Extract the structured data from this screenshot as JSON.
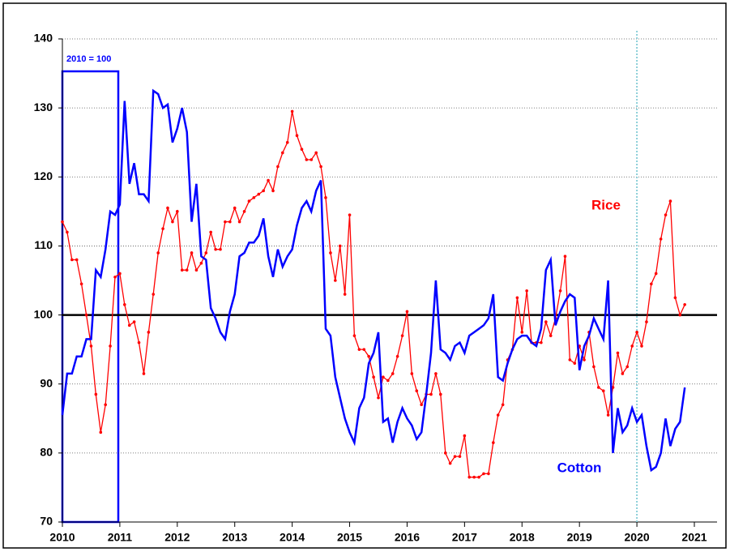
{
  "chart_data": {
    "type": "line",
    "annotations": [
      "2010 = 100"
    ],
    "x": [
      2010,
      2010.083,
      2010.167,
      2010.25,
      2010.333,
      2010.417,
      2010.5,
      2010.583,
      2010.667,
      2010.75,
      2010.833,
      2010.917,
      2011,
      2011.083,
      2011.167,
      2011.25,
      2011.333,
      2011.417,
      2011.5,
      2011.583,
      2011.667,
      2011.75,
      2011.833,
      2011.917,
      2012,
      2012.083,
      2012.167,
      2012.25,
      2012.333,
      2012.417,
      2012.5,
      2012.583,
      2012.667,
      2012.75,
      2012.833,
      2012.917,
      2013,
      2013.083,
      2013.167,
      2013.25,
      2013.333,
      2013.417,
      2013.5,
      2013.583,
      2013.667,
      2013.75,
      2013.833,
      2013.917,
      2014,
      2014.083,
      2014.167,
      2014.25,
      2014.333,
      2014.417,
      2014.5,
      2014.583,
      2014.667,
      2014.75,
      2014.833,
      2014.917,
      2015,
      2015.083,
      2015.167,
      2015.25,
      2015.333,
      2015.417,
      2015.5,
      2015.583,
      2015.667,
      2015.75,
      2015.833,
      2015.917,
      2016,
      2016.083,
      2016.167,
      2016.25,
      2016.333,
      2016.417,
      2016.5,
      2016.583,
      2016.667,
      2016.75,
      2016.833,
      2016.917,
      2017,
      2017.083,
      2017.167,
      2017.25,
      2017.333,
      2017.417,
      2017.5,
      2017.583,
      2017.667,
      2017.75,
      2017.833,
      2017.917,
      2018,
      2018.083,
      2018.167,
      2018.25,
      2018.333,
      2018.417,
      2018.5,
      2018.583,
      2018.667,
      2018.75,
      2018.833,
      2018.917,
      2019,
      2019.083,
      2019.167,
      2019.25,
      2019.333,
      2019.417,
      2019.5,
      2019.583,
      2019.667,
      2019.75,
      2019.833,
      2019.917,
      2020,
      2020.083,
      2020.167,
      2020.25,
      2020.333,
      2020.417,
      2020.5,
      2020.583,
      2020.667,
      2020.75,
      2020.833
    ],
    "series": [
      {
        "name": "Rice",
        "color": "#ff0000",
        "markers": true,
        "values": [
          113.5,
          112,
          108,
          108,
          104.5,
          100,
          95.5,
          88.5,
          83,
          87,
          95.5,
          105.5,
          106,
          101.5,
          98.5,
          99,
          96,
          91.5,
          97.5,
          103,
          109,
          112.5,
          115.5,
          113.5,
          115,
          106.5,
          106.5,
          109,
          106.5,
          107.5,
          109,
          112,
          109.5,
          109.5,
          113.5,
          113.5,
          115.5,
          113.5,
          115,
          116.5,
          117,
          117.5,
          118,
          119.5,
          118,
          121.5,
          123.5,
          125,
          129.5,
          126,
          124,
          122.5,
          122.5,
          123.5,
          121.5,
          117,
          109,
          105,
          110,
          103,
          114.5,
          97,
          95,
          95,
          94,
          91,
          88,
          91,
          90.5,
          91.5,
          94,
          97,
          100.5,
          91.5,
          89,
          87,
          88.5,
          88.5,
          91.5,
          88.5,
          80,
          78.5,
          79.5,
          79.5,
          82.5,
          76.5,
          76.5,
          76.5,
          77,
          77,
          81.5,
          85.5,
          87,
          93.5,
          95,
          102.5,
          97.5,
          103.5,
          96,
          96,
          96,
          99,
          97,
          99.5,
          103.5,
          108.5,
          93.5,
          93,
          95.5,
          93.5,
          97.5,
          92.5,
          89.5,
          89,
          85.5,
          89.5,
          94.5,
          91.5,
          92.5,
          95.5,
          97.5,
          95.5,
          99,
          104.5,
          106,
          111,
          114.5,
          116.5,
          102.5,
          100,
          101.5
        ]
      },
      {
        "name": "Cotton",
        "color": "#0000ff",
        "markers": false,
        "values": [
          85.5,
          91.5,
          91.5,
          94,
          94,
          96.5,
          96.5,
          106.5,
          105.5,
          109.5,
          115,
          114.5,
          116,
          131,
          119,
          122,
          117.5,
          117.5,
          116.5,
          132.5,
          132,
          130,
          130.5,
          125,
          127,
          130,
          126.5,
          113.5,
          119,
          108.5,
          108,
          101,
          99.5,
          97.5,
          96.5,
          100.5,
          103,
          108.5,
          109,
          110.5,
          110.5,
          111.5,
          114,
          108.5,
          105.5,
          109.5,
          107,
          108.5,
          109.5,
          113,
          115.5,
          116.5,
          115,
          118,
          119.5,
          98,
          97,
          91,
          88,
          85,
          83,
          81.5,
          86.5,
          88,
          93,
          94.5,
          97.5,
          84.5,
          85,
          81.5,
          84.5,
          86.5,
          85,
          84,
          82,
          83,
          88.5,
          94.5,
          105,
          95,
          94.5,
          93.5,
          95.5,
          96,
          94.5,
          97,
          97.5,
          98,
          98.5,
          99.5,
          103,
          91,
          90.5,
          93,
          95,
          96.5,
          97,
          97,
          96,
          95.5,
          98,
          106.5,
          108,
          98.5,
          100.5,
          102,
          103,
          102.5,
          92,
          95.5,
          97,
          99.5,
          98,
          96.5,
          105,
          80,
          86.5,
          83,
          84,
          86.5,
          84.5,
          85.5,
          81,
          77.5,
          78,
          80,
          85,
          81,
          83.5,
          84.5,
          89.5
        ]
      }
    ],
    "xlim": [
      2010,
      2021
    ],
    "xticks": [
      2010,
      2011,
      2012,
      2013,
      2014,
      2015,
      2016,
      2017,
      2018,
      2019,
      2020,
      2021
    ],
    "ylim": [
      70,
      140
    ],
    "yticks": [
      70,
      80,
      90,
      100,
      110,
      120,
      130,
      140
    ],
    "reference_line": 100,
    "vertical_line": 2020,
    "grid": true
  }
}
